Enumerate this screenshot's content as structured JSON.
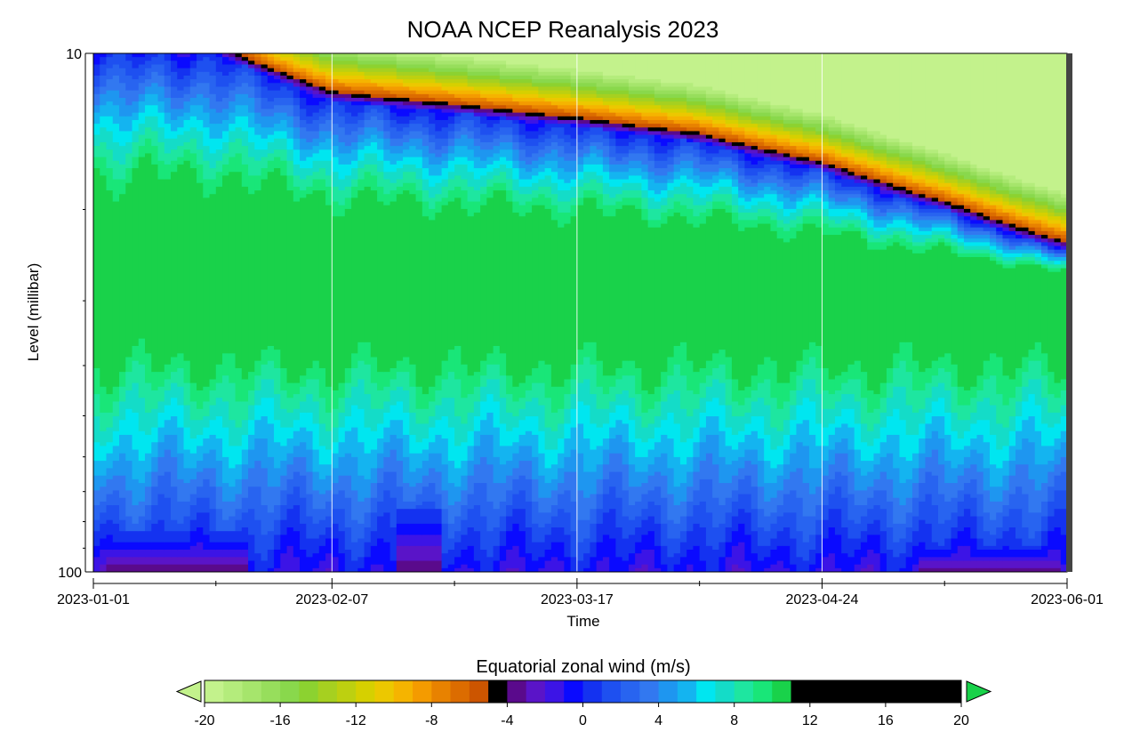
{
  "chart_data": {
    "type": "heatmap",
    "title": "NOAA NCEP Reanalysis 2023",
    "xlabel": "Time",
    "ylabel": "Level (millibar)",
    "x_axis": {
      "type": "date",
      "range": [
        "2023-01-01",
        "2023-06-01"
      ],
      "tick_labels": [
        "2023-01-01",
        "2023-02-07",
        "2023-03-17",
        "2023-04-24",
        "2023-06-01"
      ],
      "minor_tick_dates": [
        "2023-01-20",
        "2023-02-26",
        "2023-04-05",
        "2023-05-13"
      ]
    },
    "y_axis": {
      "scale": "log",
      "inverted": true,
      "range": [
        10,
        100
      ],
      "tick_labels": [
        "10",
        "100"
      ],
      "minor_ticks": [
        20,
        30,
        40,
        50,
        60,
        70,
        80,
        90
      ]
    },
    "colorbar": {
      "title": "Equatorial zonal wind (m/s)",
      "range": [
        -20,
        20
      ],
      "step": 1,
      "tick_labels": [
        "-20",
        "-16",
        "-12",
        "-8",
        "-4",
        "0",
        "4",
        "8",
        "12",
        "16",
        "20"
      ],
      "extend": "both",
      "under_color": "#c3f28c",
      "over_color": "#19d24a",
      "colors": [
        "#c3f28c",
        "#b4ec7c",
        "#a6e56c",
        "#97de5c",
        "#89d84c",
        "#8cd230",
        "#a6d020",
        "#bdd010",
        "#d6d000",
        "#ecc800",
        "#f5b400",
        "#f49b00",
        "#e88200",
        "#dc6c00",
        "#cc5500",
        "#000000",
        "#5a0a8c",
        "#5a14c8",
        "#3c14e6",
        "#0a0aff",
        "#1432f0",
        "#1e50f0",
        "#2864f0",
        "#3278f0",
        "#1e96f0",
        "#14b4f0",
        "#00e6f0",
        "#14dcc8",
        "#1ee6a0",
        "#19e678",
        "#19d24a"
      ]
    },
    "field": {
      "units": "m/s",
      "critical_line_pressure_mb": {
        "dates": [
          "2023-01-01",
          "2023-01-20",
          "2023-02-07",
          "2023-02-26",
          "2023-03-17",
          "2023-04-05",
          "2023-04-24",
          "2023-05-13",
          "2023-06-01"
        ],
        "pressure": [
          10,
          10,
          12.3,
          13,
          13.8,
          14.8,
          16.8,
          20,
          24
        ]
      },
      "westerly_max_pressure_mb": 29,
      "westerly_max_value": 14,
      "easterly_aloft_max_value": -20,
      "lower_easterly_patches": [
        {
          "start": "2023-01-02",
          "end": "2023-01-26",
          "top_mb": 84,
          "min_value": -4
        },
        {
          "start": "2023-02-16",
          "end": "2023-02-25",
          "top_mb": 76,
          "min_value": -4
        },
        {
          "start": "2023-03-14",
          "end": "2023-03-17",
          "top_mb": 87,
          "min_value": -1
        },
        {
          "start": "2023-05-08",
          "end": "2023-06-01",
          "top_mb": 89,
          "min_value": -4
        }
      ]
    }
  }
}
